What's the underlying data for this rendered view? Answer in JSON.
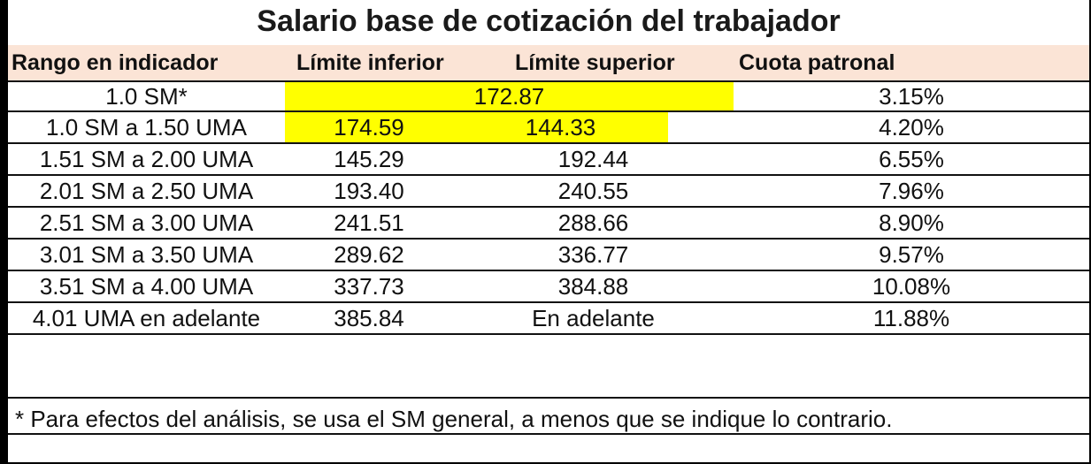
{
  "title": "Salario base de cotización del trabajador",
  "headers": [
    "Rango en indicador",
    "Límite inferior",
    "Límite superior",
    "Cuota patronal"
  ],
  "rows": [
    {
      "rango": "1.0 SM*",
      "limite_combined": "172.87",
      "cuota": "3.15%"
    },
    {
      "rango": "1.0 SM a 1.50 UMA",
      "inferior": "174.59",
      "superior": "144.33",
      "cuota": "4.20%"
    },
    {
      "rango": "1.51 SM a 2.00 UMA",
      "inferior": "145.29",
      "superior": "192.44",
      "cuota": "6.55%"
    },
    {
      "rango": "2.01 SM a 2.50 UMA",
      "inferior": "193.40",
      "superior": "240.55",
      "cuota": "7.96%"
    },
    {
      "rango": "2.51 SM a 3.00 UMA",
      "inferior": "241.51",
      "superior": "288.66",
      "cuota": "8.90%"
    },
    {
      "rango": "3.01 SM a 3.50 UMA",
      "inferior": "289.62",
      "superior": "336.77",
      "cuota": "9.57%"
    },
    {
      "rango": "3.51 SM a 4.00 UMA",
      "inferior": "337.73",
      "superior": "384.88",
      "cuota": "10.08%"
    },
    {
      "rango": "4.01 UMA en adelante",
      "inferior": "385.84",
      "superior": "En adelante",
      "cuota": "11.88%"
    }
  ],
  "footnote": "* Para efectos del análisis, se usa el SM general, a menos que se indique lo contrario.",
  "colors": {
    "header_bg": "#fbe4d6",
    "highlight": "#ffff00"
  }
}
